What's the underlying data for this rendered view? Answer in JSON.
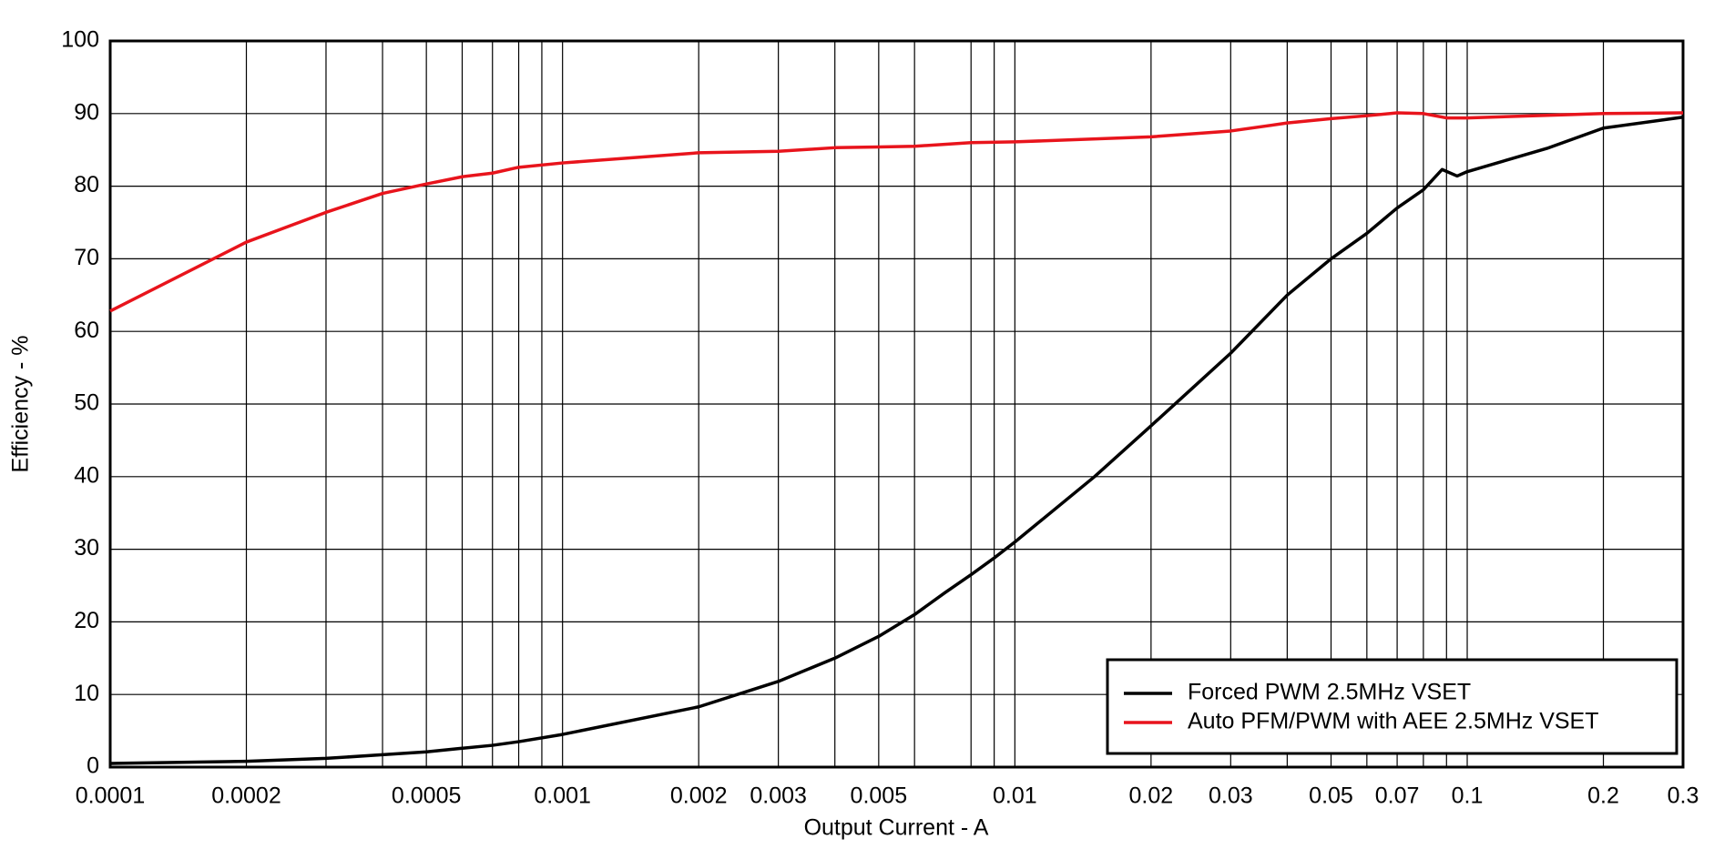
{
  "chart_data": {
    "type": "line",
    "x_label": "Output Current - A",
    "y_label": "Efficiency - %",
    "xscale": "log",
    "xlim": [
      0.0001,
      0.3
    ],
    "ylim": [
      0,
      100
    ],
    "xticks": [
      0.0001,
      0.0002,
      0.0005,
      0.001,
      0.002,
      0.003,
      0.005,
      0.01,
      0.02,
      0.03,
      0.05,
      0.07,
      0.1,
      0.2,
      0.3
    ],
    "xgrid_minor": [
      0.0003,
      0.0004,
      0.0006,
      0.0007,
      0.0008,
      0.0009,
      0.004,
      0.006,
      0.008,
      0.009,
      0.04,
      0.06,
      0.08,
      0.09
    ],
    "yticks": [
      0,
      10,
      20,
      30,
      40,
      50,
      60,
      70,
      80,
      90,
      100
    ],
    "grid": true,
    "legend": "lower right",
    "series": [
      {
        "name": "Forced PWM 2.5MHz VSET",
        "color": "#000000",
        "x": [
          0.0001,
          0.0002,
          0.0003,
          0.0004,
          0.0005,
          0.0006,
          0.0007,
          0.0008,
          0.001,
          0.002,
          0.003,
          0.004,
          0.005,
          0.006,
          0.007,
          0.008,
          0.009,
          0.01,
          0.015,
          0.02,
          0.025,
          0.03,
          0.04,
          0.05,
          0.06,
          0.07,
          0.08,
          0.088,
          0.095,
          0.1,
          0.15,
          0.2,
          0.3
        ],
        "values": [
          0.5,
          0.8,
          1.2,
          1.7,
          2.1,
          2.6,
          3.0,
          3.5,
          4.5,
          8.3,
          11.8,
          15,
          18,
          21,
          24,
          26.5,
          28.8,
          31,
          40,
          47,
          52.5,
          57,
          65,
          70,
          73.5,
          77,
          79.5,
          82.3,
          81.4,
          82,
          85.2,
          88,
          89.5
        ]
      },
      {
        "name": "Auto PFM/PWM with AEE 2.5MHz VSET",
        "color": "#e8141c",
        "x": [
          0.0001,
          0.0002,
          0.0003,
          0.0004,
          0.0005,
          0.0006,
          0.0007,
          0.0008,
          0.001,
          0.002,
          0.003,
          0.004,
          0.005,
          0.006,
          0.008,
          0.01,
          0.02,
          0.03,
          0.04,
          0.05,
          0.06,
          0.07,
          0.08,
          0.09,
          0.1,
          0.2,
          0.3
        ],
        "values": [
          62.8,
          72.3,
          76.4,
          79,
          80.3,
          81.3,
          81.8,
          82.6,
          83.2,
          84.6,
          84.8,
          85.3,
          85.4,
          85.5,
          86,
          86.1,
          86.8,
          87.6,
          88.7,
          89.3,
          89.7,
          90.1,
          90,
          89.4,
          89.4,
          90,
          90.1
        ]
      }
    ]
  }
}
